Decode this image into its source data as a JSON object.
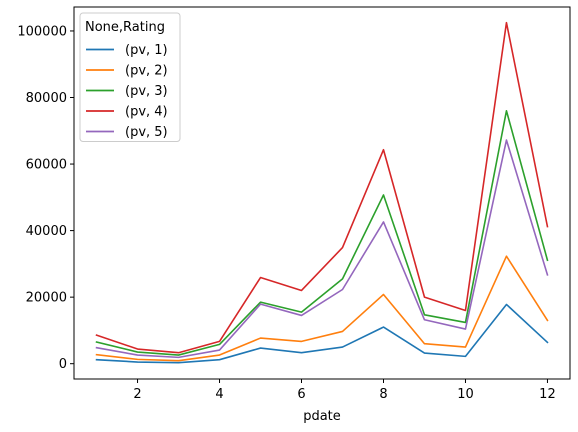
{
  "chart_data": {
    "type": "line",
    "xlabel": "pdate",
    "ylabel": "",
    "title": "",
    "x": [
      1,
      2,
      3,
      4,
      5,
      6,
      7,
      8,
      9,
      10,
      11,
      12
    ],
    "xlim": [
      0.45,
      12.55
    ],
    "ylim": [
      -4600,
      107200
    ],
    "xticks": [
      2,
      4,
      6,
      8,
      10,
      12
    ],
    "yticks": [
      0,
      20000,
      40000,
      60000,
      80000,
      100000
    ],
    "grid": false,
    "legend": {
      "title": "None,Rating",
      "placement": "top-left"
    },
    "series": [
      {
        "name": "(pv, 1)",
        "color": "#1f77b4",
        "values": [
          1200,
          500,
          300,
          1200,
          4700,
          3300,
          5000,
          11000,
          3200,
          2200,
          17800,
          6400
        ]
      },
      {
        "name": "(pv, 2)",
        "color": "#ff7f0e",
        "values": [
          2700,
          1300,
          900,
          2600,
          7700,
          6700,
          9700,
          20800,
          6000,
          5000,
          32300,
          13000
        ]
      },
      {
        "name": "(pv, 3)",
        "color": "#2ca02c",
        "values": [
          6500,
          3500,
          2600,
          5800,
          18500,
          15500,
          25500,
          50700,
          14700,
          12400,
          76000,
          31100
        ]
      },
      {
        "name": "(pv, 4)",
        "color": "#d62728",
        "values": [
          8600,
          4400,
          3300,
          6700,
          25900,
          22000,
          34900,
          64300,
          20000,
          16000,
          102500,
          41200
        ]
      },
      {
        "name": "(pv, 5)",
        "color": "#9467bd",
        "values": [
          4800,
          2600,
          1900,
          4100,
          17900,
          14500,
          22300,
          42600,
          13200,
          10400,
          67200,
          26700
        ]
      }
    ]
  }
}
